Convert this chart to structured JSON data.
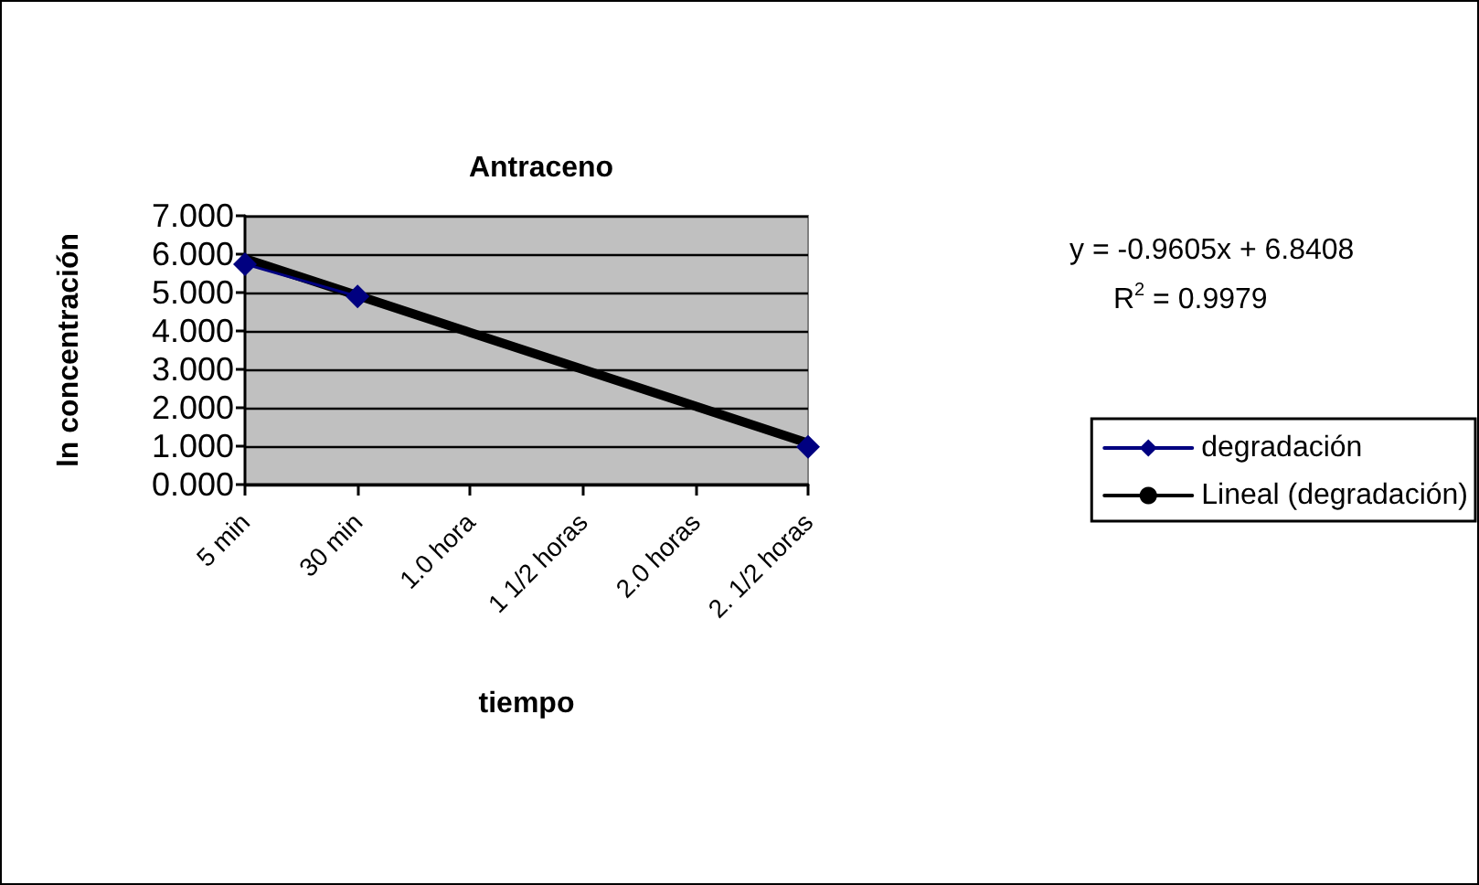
{
  "chart_data": {
    "type": "line",
    "title": "Antraceno",
    "xlabel": "tiempo",
    "ylabel": "ln concentración",
    "categories": [
      "5 min",
      "30 min",
      "1.0 hora",
      "1 1/2 horas",
      "2.0 horas",
      "2. 1/2 horas"
    ],
    "series": [
      {
        "name": "degradación",
        "color": "#000080",
        "marker": "diamond",
        "values": [
          5.74,
          4.9,
          null,
          null,
          null,
          0.98
        ]
      },
      {
        "name": "Lineal (degradación)",
        "color": "#000000",
        "marker": "none",
        "values": [
          5.88,
          4.92,
          3.96,
          3.0,
          2.04,
          1.08
        ]
      }
    ],
    "ylim": [
      0,
      7
    ],
    "yticks": [
      {
        "value": 0,
        "label": "0.000"
      },
      {
        "value": 1,
        "label": "1.000"
      },
      {
        "value": 2,
        "label": "2.000"
      },
      {
        "value": 3,
        "label": "3.000"
      },
      {
        "value": 4,
        "label": "4.000"
      },
      {
        "value": 5,
        "label": "5.000"
      },
      {
        "value": 6,
        "label": "6.000"
      },
      {
        "value": 7,
        "label": "7.000"
      }
    ],
    "grid": "y",
    "legend": "right",
    "annotations": [
      "y = -0.9605x + 6.8408",
      "R$^{2}$ = 0.9979"
    ]
  }
}
